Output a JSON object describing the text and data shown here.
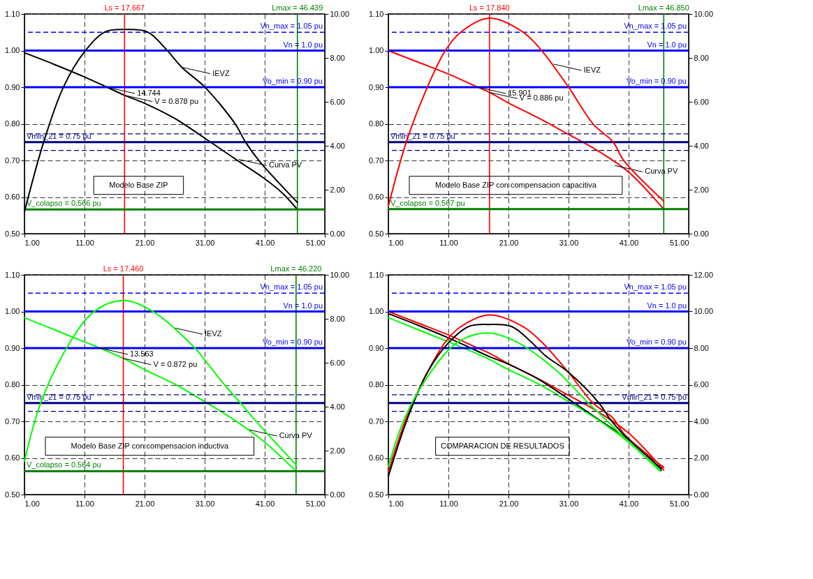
{
  "chart_data": [
    {
      "type": "line",
      "xlim": [
        1,
        51
      ],
      "xticks": [
        {
          "value": 1,
          "label": "1.00"
        },
        {
          "value": 11,
          "label": "11.00"
        },
        {
          "value": 21,
          "label": "21.00"
        },
        {
          "value": 31,
          "label": "31.00"
        },
        {
          "value": 41,
          "label": "41.00"
        },
        {
          "value": 51,
          "label": "51.00"
        }
      ],
      "ylim": [
        0.5,
        1.1
      ],
      "yticks": [
        {
          "value": 0.5,
          "label": "0.50"
        },
        {
          "value": 0.6,
          "label": "0.60"
        },
        {
          "value": 0.7,
          "label": "0.70"
        },
        {
          "value": 0.8,
          "label": "0.80"
        },
        {
          "value": 0.9,
          "label": "0.90"
        },
        {
          "value": 1.0,
          "label": "1.00"
        },
        {
          "value": 1.1,
          "label": "1.10"
        }
      ],
      "y2lim": [
        0,
        10
      ],
      "y2ticks": [
        {
          "value": 0,
          "label": "0.00"
        },
        {
          "value": 2,
          "label": "2.00"
        },
        {
          "value": 4,
          "label": "4.00"
        },
        {
          "value": 6,
          "label": "6.00"
        },
        {
          "value": 8,
          "label": "8.00"
        },
        {
          "value": 10,
          "label": "10.00"
        }
      ],
      "grid": true,
      "series": [
        {
          "color": "#000000",
          "x": [
            1,
            6,
            11,
            14.744,
            17.667,
            21,
            26,
            31,
            36,
            41,
            44,
            46.439
          ],
          "values": [
            0.994,
            0.962,
            0.928,
            0.9,
            0.878,
            0.856,
            0.815,
            0.761,
            0.705,
            0.65,
            0.61,
            0.566
          ]
        },
        {
          "color": "#000000",
          "axis": "y2",
          "x": [
            1,
            4.2,
            7.5,
            11,
            14.4,
            17.7,
            21.5,
            24.8,
            27.2,
            31,
            36.1,
            37.8,
            40,
            46.439
          ],
          "values": [
            1.0,
            4.17,
            6.68,
            8.28,
            9.18,
            9.29,
            9.18,
            8.33,
            7.57,
            6.68,
            4.99,
            4.17,
            3.34,
            1.42
          ]
        }
      ],
      "ref_lines": [
        {
          "axis": "x",
          "value": 17.667,
          "label": "Ls = 17.667",
          "color": "#ff0000"
        },
        {
          "axis": "x",
          "value": 46.439,
          "label": "Lmax = 46.439",
          "color": "#008000"
        },
        {
          "axis": "y",
          "value": 1.05,
          "label": "Vn_max = 1.05 pu",
          "color": "#0000ff",
          "line_style": "dashed"
        },
        {
          "axis": "y",
          "value": 1.0,
          "label": "Vn = 1.0 pu",
          "color": "#0000ff"
        },
        {
          "axis": "y",
          "value": 0.9,
          "label": "Vo_min = 0.90 pu",
          "color": "#0000ff"
        },
        {
          "axis": "y",
          "value": 0.7725,
          "color": "#000080",
          "line_style": "dashed"
        },
        {
          "axis": "y",
          "value": 0.75,
          "label": "Vmin_21 = 0.75 pu",
          "color": "#000080"
        },
        {
          "axis": "y",
          "value": 0.7275,
          "color": "#000080",
          "line_style": "dashed"
        },
        {
          "axis": "y",
          "value": 0.566,
          "label": "V_colapso = 0.566 pu",
          "color": "#008000"
        }
      ],
      "annotations": [
        "Modelo Base ZIP",
        {
          "text": "IEVZ",
          "x": 27.3,
          "y": 0.954
        },
        {
          "text": "14.744",
          "x": 14.744,
          "y": 0.9
        },
        {
          "text": "V = 0.878 pu",
          "x": 17.667,
          "y": 0.878
        },
        {
          "text": "Curva PV",
          "x": 36.7,
          "y": 0.703
        }
      ]
    },
    {
      "type": "line",
      "xlim": [
        1,
        51
      ],
      "xticks": [
        {
          "value": 1,
          "label": "1.00"
        },
        {
          "value": 11,
          "label": "11.00"
        },
        {
          "value": 21,
          "label": "21.00"
        },
        {
          "value": 31,
          "label": "31.00"
        },
        {
          "value": 41,
          "label": "41.00"
        },
        {
          "value": 51,
          "label": "51.00"
        }
      ],
      "ylim": [
        0.5,
        1.1
      ],
      "yticks": [
        {
          "value": 0.5,
          "label": "0.50"
        },
        {
          "value": 0.6,
          "label": "0.60"
        },
        {
          "value": 0.7,
          "label": "0.70"
        },
        {
          "value": 0.8,
          "label": "0.80"
        },
        {
          "value": 0.9,
          "label": "0.90"
        },
        {
          "value": 1.0,
          "label": "1.00"
        },
        {
          "value": 1.1,
          "label": "1.10"
        }
      ],
      "y2lim": [
        0,
        10
      ],
      "y2ticks": [
        {
          "value": 0,
          "label": "0.00"
        },
        {
          "value": 2,
          "label": "2.00"
        },
        {
          "value": 4,
          "label": "4.00"
        },
        {
          "value": 6,
          "label": "6.00"
        },
        {
          "value": 8,
          "label": "8.00"
        },
        {
          "value": 10,
          "label": "10.00"
        }
      ],
      "grid": true,
      "series": [
        {
          "color": "#ff0000",
          "x": [
            1,
            6,
            11,
            15.901,
            17.84,
            21,
            26,
            31,
            36,
            41,
            46.85
          ],
          "values": [
            1.0,
            0.968,
            0.936,
            0.9,
            0.886,
            0.857,
            0.816,
            0.771,
            0.725,
            0.668,
            0.567
          ]
        },
        {
          "color": "#ff0000",
          "axis": "y2",
          "x": [
            1,
            4.0,
            7.5,
            10.5,
            13.1,
            17.8,
            23.4,
            26.5,
            31,
            35.1,
            38.4,
            40.2,
            46.85
          ],
          "values": [
            1.25,
            4.18,
            6.67,
            8.34,
            9.18,
            9.81,
            9.18,
            8.34,
            6.67,
            4.99,
            4.18,
            3.33,
            1.48
          ]
        }
      ],
      "ref_lines": [
        {
          "axis": "x",
          "value": 17.84,
          "label": "Ls = 17.840",
          "color": "#ff0000"
        },
        {
          "axis": "x",
          "value": 46.85,
          "label": "Lmax = 46.850",
          "color": "#008000"
        },
        {
          "axis": "y",
          "value": 1.05,
          "label": "Vn_max = 1.05 pu",
          "color": "#0000ff",
          "line_style": "dashed"
        },
        {
          "axis": "y",
          "value": 1.0,
          "label": "Vn = 1.0 pu",
          "color": "#0000ff"
        },
        {
          "axis": "y",
          "value": 0.9,
          "label": "Vo_min = 0.90 pu",
          "color": "#0000ff"
        },
        {
          "axis": "y",
          "value": 0.7725,
          "color": "#000080",
          "line_style": "dashed"
        },
        {
          "axis": "y",
          "value": 0.75,
          "label": "Vmin_21 = 0.75 pu",
          "color": "#000080"
        },
        {
          "axis": "y",
          "value": 0.7275,
          "color": "#000080",
          "line_style": "dashed"
        },
        {
          "axis": "y",
          "value": 0.567,
          "label": "V_colapso = 0.567 pu",
          "color": "#008000"
        }
      ],
      "annotations": [
        "Modelo Base ZIP con compensacion capacitiva",
        {
          "text": "IEVZ",
          "x": 28.5,
          "y": 0.963
        },
        {
          "text": "15.901",
          "x": 15.901,
          "y": 0.9
        },
        {
          "text": "V = 0.886 pu",
          "x": 17.84,
          "y": 0.886
        },
        {
          "text": "Curva PV",
          "x": 38.7,
          "y": 0.686
        }
      ]
    },
    {
      "type": "line",
      "xlim": [
        1,
        51
      ],
      "xticks": [
        {
          "value": 1,
          "label": "1.00"
        },
        {
          "value": 11,
          "label": "11.00"
        },
        {
          "value": 21,
          "label": "21.00"
        },
        {
          "value": 31,
          "label": "31.00"
        },
        {
          "value": 41,
          "label": "41.00"
        },
        {
          "value": 51,
          "label": "51.00"
        }
      ],
      "ylim": [
        0.5,
        1.1
      ],
      "yticks": [
        {
          "value": 0.5,
          "label": "0.50"
        },
        {
          "value": 0.6,
          "label": "0.60"
        },
        {
          "value": 0.7,
          "label": "0.70"
        },
        {
          "value": 0.8,
          "label": "0.80"
        },
        {
          "value": 0.9,
          "label": "0.90"
        },
        {
          "value": 1.0,
          "label": "1.00"
        },
        {
          "value": 1.1,
          "label": "1.10"
        }
      ],
      "y2lim": [
        0,
        10
      ],
      "y2ticks": [
        {
          "value": 0,
          "label": "0.00"
        },
        {
          "value": 2,
          "label": "2.00"
        },
        {
          "value": 4,
          "label": "4.00"
        },
        {
          "value": 6,
          "label": "6.00"
        },
        {
          "value": 8,
          "label": "8.00"
        },
        {
          "value": 10,
          "label": "10.00"
        }
      ],
      "grid": true,
      "series": [
        {
          "color": "#00ff00",
          "x": [
            1,
            6,
            11,
            13.563,
            17.46,
            21,
            26,
            31,
            36,
            41,
            46.22
          ],
          "values": [
            0.983,
            0.95,
            0.917,
            0.9,
            0.872,
            0.841,
            0.802,
            0.754,
            0.703,
            0.643,
            0.564
          ]
        },
        {
          "color": "#00ff00",
          "axis": "y2",
          "x": [
            1,
            3.7,
            8.0,
            12.6,
            17.5,
            22.4,
            29.4,
            31,
            34.3,
            37,
            40,
            46.22
          ],
          "values": [
            1.52,
            4.16,
            6.66,
            8.33,
            8.83,
            8.33,
            6.66,
            6.13,
            5.0,
            4.16,
            3.2,
            1.36
          ]
        }
      ],
      "ref_lines": [
        {
          "axis": "x",
          "value": 17.46,
          "label": "Ls = 17.460",
          "color": "#ff0000"
        },
        {
          "axis": "x",
          "value": 46.22,
          "label": "Lmax = 46.220",
          "color": "#008000"
        },
        {
          "axis": "y",
          "value": 1.05,
          "label": "Vn_max = 1.05 pu",
          "color": "#0000ff",
          "line_style": "dashed"
        },
        {
          "axis": "y",
          "value": 1.0,
          "label": "Vn = 1.0 pu",
          "color": "#0000ff"
        },
        {
          "axis": "y",
          "value": 0.9,
          "label": "Vo_min = 0.90 pu",
          "color": "#0000ff"
        },
        {
          "axis": "y",
          "value": 0.7725,
          "color": "#000080",
          "line_style": "dashed"
        },
        {
          "axis": "y",
          "value": 0.75,
          "label": "Vmin_21 = 0.75 pu",
          "color": "#000080"
        },
        {
          "axis": "y",
          "value": 0.7275,
          "color": "#000080",
          "line_style": "dashed"
        },
        {
          "axis": "y",
          "value": 0.564,
          "label": "V_colapso = 0.564 pu",
          "color": "#008000"
        }
      ],
      "annotations": [
        "Modelo Base ZIP con compensacion inductiva",
        {
          "text": "IEVZ",
          "x": 26.0,
          "y": 0.955
        },
        {
          "text": "13.563",
          "x": 13.563,
          "y": 0.9
        },
        {
          "text": "V = 0.872 pu",
          "x": 17.46,
          "y": 0.872
        },
        {
          "text": "Curva PV",
          "x": 38.4,
          "y": 0.677
        }
      ]
    },
    {
      "type": "line",
      "xlim": [
        1,
        51
      ],
      "xticks": [
        {
          "value": 1,
          "label": "1.00"
        },
        {
          "value": 11,
          "label": "11.00"
        },
        {
          "value": 21,
          "label": "21.00"
        },
        {
          "value": 31,
          "label": "31.00"
        },
        {
          "value": 41,
          "label": "41.00"
        },
        {
          "value": 51,
          "label": "51.00"
        }
      ],
      "ylim": [
        0.5,
        1.1
      ],
      "yticks": [
        {
          "value": 0.5,
          "label": "0.50"
        },
        {
          "value": 0.6,
          "label": "0.60"
        },
        {
          "value": 0.7,
          "label": "0.70"
        },
        {
          "value": 0.8,
          "label": "0.80"
        },
        {
          "value": 0.9,
          "label": "0.90"
        },
        {
          "value": 1.0,
          "label": "1.00"
        },
        {
          "value": 1.1,
          "label": "1.10"
        }
      ],
      "y2lim": [
        0,
        12
      ],
      "y2ticks": [
        {
          "value": 0,
          "label": "0.00"
        },
        {
          "value": 2,
          "label": "2.00"
        },
        {
          "value": 4,
          "label": "4.00"
        },
        {
          "value": 6,
          "label": "6.00"
        },
        {
          "value": 8,
          "label": "8.00"
        },
        {
          "value": 10,
          "label": "10.00"
        },
        {
          "value": 12,
          "label": "12.00"
        }
      ],
      "grid": true,
      "series": [
        {
          "color": "#ff0000",
          "x": [
            1,
            6,
            11,
            15.901,
            17.84,
            21,
            26,
            31,
            36,
            41,
            46.85
          ],
          "values": [
            1.0,
            0.968,
            0.936,
            0.9,
            0.886,
            0.857,
            0.816,
            0.771,
            0.725,
            0.668,
            0.567
          ]
        },
        {
          "color": "#000000",
          "x": [
            1,
            6,
            11,
            14.744,
            17.667,
            21,
            26,
            31,
            36,
            41,
            44,
            46.439
          ],
          "values": [
            0.994,
            0.962,
            0.928,
            0.9,
            0.878,
            0.856,
            0.815,
            0.761,
            0.705,
            0.65,
            0.61,
            0.566
          ]
        },
        {
          "color": "#00ff00",
          "x": [
            1,
            6,
            11,
            13.563,
            17.46,
            21,
            26,
            31,
            36,
            41,
            46.22
          ],
          "values": [
            0.983,
            0.95,
            0.917,
            0.9,
            0.872,
            0.841,
            0.802,
            0.754,
            0.703,
            0.643,
            0.564
          ]
        },
        {
          "color": "#ff0000",
          "axis": "y2",
          "x": [
            1,
            4.0,
            7.5,
            10.5,
            13.1,
            17.8,
            23.4,
            26.5,
            31,
            35.1,
            38.4,
            40.2,
            46.85
          ],
          "values": [
            1.25,
            4.18,
            6.67,
            8.34,
            9.18,
            9.81,
            9.18,
            8.34,
            6.67,
            4.99,
            4.18,
            3.33,
            1.48
          ]
        },
        {
          "color": "#000000",
          "axis": "y2",
          "x": [
            1,
            4.2,
            7.5,
            11,
            14.4,
            17.7,
            21.5,
            24.8,
            27.2,
            31,
            36.1,
            37.8,
            40,
            46.439
          ],
          "values": [
            1.0,
            4.17,
            6.68,
            8.28,
            9.18,
            9.29,
            9.18,
            8.33,
            7.57,
            6.68,
            4.99,
            4.17,
            3.34,
            1.42
          ]
        },
        {
          "color": "#00ff00",
          "axis": "y2",
          "x": [
            1,
            3.7,
            8.0,
            12.6,
            17.5,
            22.4,
            29.4,
            31,
            34.3,
            37,
            40,
            46.22
          ],
          "values": [
            1.52,
            4.16,
            6.66,
            8.33,
            8.83,
            8.33,
            6.66,
            6.13,
            5.0,
            4.16,
            3.2,
            1.36
          ]
        }
      ],
      "ref_lines": [
        {
          "axis": "y",
          "value": 1.05,
          "label": "Vn_max = 1.05 pu",
          "color": "#0000ff",
          "line_style": "dashed"
        },
        {
          "axis": "y",
          "value": 1.0,
          "label": "Vn = 1.0 pu",
          "color": "#0000ff"
        },
        {
          "axis": "y",
          "value": 0.9,
          "label": "Vo_min = 0.90 pu",
          "color": "#0000ff"
        },
        {
          "axis": "y",
          "value": 0.7725,
          "color": "#000080",
          "line_style": "dashed"
        },
        {
          "axis": "y",
          "value": 0.75,
          "label": "Vmin_21 = 0.75 pu",
          "color": "#000080"
        },
        {
          "axis": "y",
          "value": 0.7275,
          "color": "#000080",
          "line_style": "dashed"
        }
      ],
      "annotations": [
        "COMPARACION DE RESULTADOS"
      ]
    }
  ]
}
